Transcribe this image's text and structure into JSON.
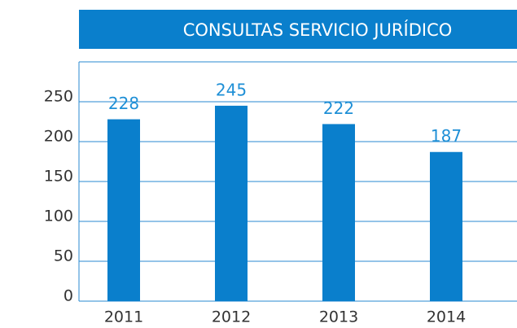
{
  "chart_data": {
    "type": "bar",
    "title": "CONSULTAS SERVICIO JURÍDICO",
    "categories": [
      "2011",
      "2012",
      "2013",
      "2014"
    ],
    "values": [
      228,
      245,
      222,
      187
    ],
    "color": "#0a7fcc",
    "ylim": [
      0,
      300
    ],
    "yticks": [
      0,
      50,
      100,
      150,
      200,
      250
    ],
    "grid": true
  }
}
